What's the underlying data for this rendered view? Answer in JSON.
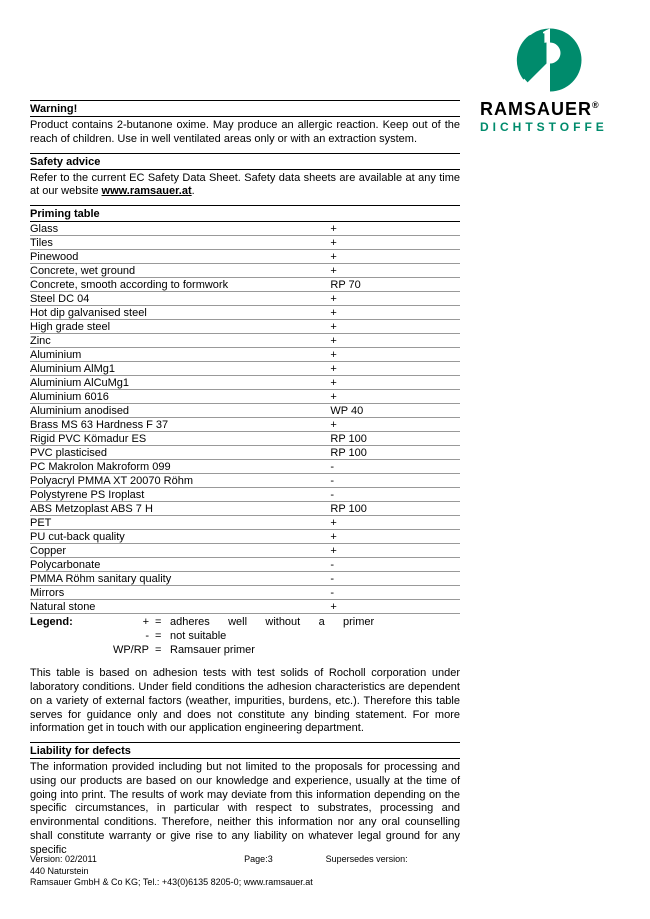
{
  "logo": {
    "brand": "RAMSAUER",
    "reg": "®",
    "subtitle": "DICHTSTOFFE",
    "icon_color": "#008b6c"
  },
  "sections": {
    "warning": {
      "heading": "Warning!",
      "body": "Product contains 2-butanone oxime. May produce an allergic reaction. Keep out of the reach of children. Use in well ventilated areas only or with an extraction system."
    },
    "safety": {
      "heading": "Safety advice",
      "body_pre": "Refer to the current EC Safety Data Sheet. Safety data sheets are available at any time at our website ",
      "body_link": "www.ramsauer.at",
      "body_post": "."
    },
    "priming": {
      "heading": "Priming table"
    },
    "liability": {
      "heading": "Liability for defects",
      "body": "The information provided including but not limited to the proposals for processing and using our products are based on our knowledge and experience, usually at the time of going into print. The results of work may deviate from this information depending on the specific circumstances, in particular with respect to substrates, processing and environmental conditions. Therefore, neither this information nor any oral counselling shall constitute warranty or give rise to any liability on whatever legal ground for any specific"
    }
  },
  "priming_rows": [
    {
      "material": "Glass",
      "value": "+"
    },
    {
      "material": "Tiles",
      "value": "+"
    },
    {
      "material": "Pinewood",
      "value": "+"
    },
    {
      "material": "Concrete, wet ground",
      "value": "+"
    },
    {
      "material": "Concrete, smooth according to formwork",
      "value": "RP 70"
    },
    {
      "material": "Steel DC 04",
      "value": "+"
    },
    {
      "material": "Hot dip galvanised steel",
      "value": "+"
    },
    {
      "material": "High grade steel",
      "value": "+"
    },
    {
      "material": "Zinc",
      "value": "+"
    },
    {
      "material": "Aluminium",
      "value": "+"
    },
    {
      "material": "Aluminium AlMg1",
      "value": "+"
    },
    {
      "material": "Aluminium AlCuMg1",
      "value": "+"
    },
    {
      "material": "Aluminium 6016",
      "value": "+"
    },
    {
      "material": "Aluminium anodised",
      "value": "WP 40"
    },
    {
      "material": "Brass MS 63 Hardness F 37",
      "value": "+"
    },
    {
      "material": "Rigid PVC Kömadur ES",
      "value": "RP 100"
    },
    {
      "material": "PVC plasticised",
      "value": "RP 100"
    },
    {
      "material": "PC Makrolon Makroform 099",
      "value": "-"
    },
    {
      "material": "Polyacryl PMMA XT 20070 Röhm",
      "value": "-"
    },
    {
      "material": "Polystyrene PS Iroplast",
      "value": "-"
    },
    {
      "material": "ABS Metzoplast ABS 7 H",
      "value": "RP 100"
    },
    {
      "material": "PET",
      "value": "+"
    },
    {
      "material": "PU cut-back quality",
      "value": "+"
    },
    {
      "material": "Copper",
      "value": "+"
    },
    {
      "material": "Polycarbonate",
      "value": "-"
    },
    {
      "material": "PMMA Röhm sanitary quality",
      "value": "-"
    },
    {
      "material": "Mirrors",
      "value": "-"
    },
    {
      "material": "Natural stone",
      "value": "+"
    }
  ],
  "legend": {
    "label": "Legend:",
    "rows": [
      {
        "sym": "+",
        "desc": "adheres      well      without      a      primer"
      },
      {
        "sym": "-",
        "desc": "not suitable"
      },
      {
        "sym": "WP/RP",
        "desc": "Ramsauer primer"
      }
    ]
  },
  "table_disclaimer": "This table is based on adhesion tests with test solids of Rocholl corporation under laboratory conditions. Under field conditions the adhesion characteristics are dependent on a variety of external factors (weather, impurities, burdens, etc.). Therefore this table serves for guidance only and does not constitute any binding statement. For more information get in touch with our application engineering department.",
  "footer": {
    "version": "Version: 02/2011",
    "page": "Page:3",
    "supersedes": "Supersedes version:",
    "product": "440 Naturstein",
    "company": "Ramsauer GmbH & Co KG; Tel.: +43(0)6135 8205-0; www.ramsauer.at"
  }
}
